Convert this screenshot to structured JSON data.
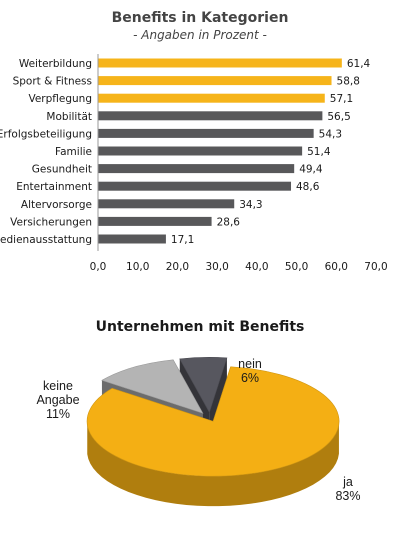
{
  "chart_data": [
    {
      "type": "bar",
      "orientation": "horizontal",
      "title": "Benefits in Kategorien",
      "subtitle": "- Angaben in Prozent -",
      "categories": [
        "Weiterbildung",
        "Sport & Fitness",
        "Verpflegung",
        "Mobilität",
        "Erfolgsbeteiligung",
        "Familie",
        "Gesundheit",
        "Entertainment",
        "Altervorsorge",
        "Versicherungen",
        "Medienausstattung"
      ],
      "values": [
        61.4,
        58.8,
        57.1,
        56.5,
        54.3,
        51.4,
        49.4,
        48.6,
        34.3,
        28.6,
        17.1
      ],
      "value_labels": [
        "61,4",
        "58,8",
        "57,1",
        "56,5",
        "54,3",
        "51,4",
        "49,4",
        "48,6",
        "34,3",
        "28,6",
        "17,1"
      ],
      "highlight_count": 3,
      "highlight_color": "#f6b41a",
      "bar_color": "#58585a",
      "xlim": [
        0,
        70
      ],
      "xticks": [
        "0,0",
        "10,0",
        "20,0",
        "30,0",
        "40,0",
        "50,0",
        "60,0",
        "70,0"
      ],
      "grid": false
    },
    {
      "type": "pie",
      "style": "3d-exploded",
      "title": "Unternehmen mit Benefits",
      "slices": [
        {
          "label": "ja",
          "pct_label": "83%",
          "value": 83,
          "color": "#f4af14"
        },
        {
          "label": "keine\nAngabe",
          "pct_label": "11%",
          "value": 11,
          "color": "#b4b4b4"
        },
        {
          "label": "nein",
          "pct_label": "6%",
          "value": 6,
          "color": "#57575f"
        }
      ]
    }
  ]
}
